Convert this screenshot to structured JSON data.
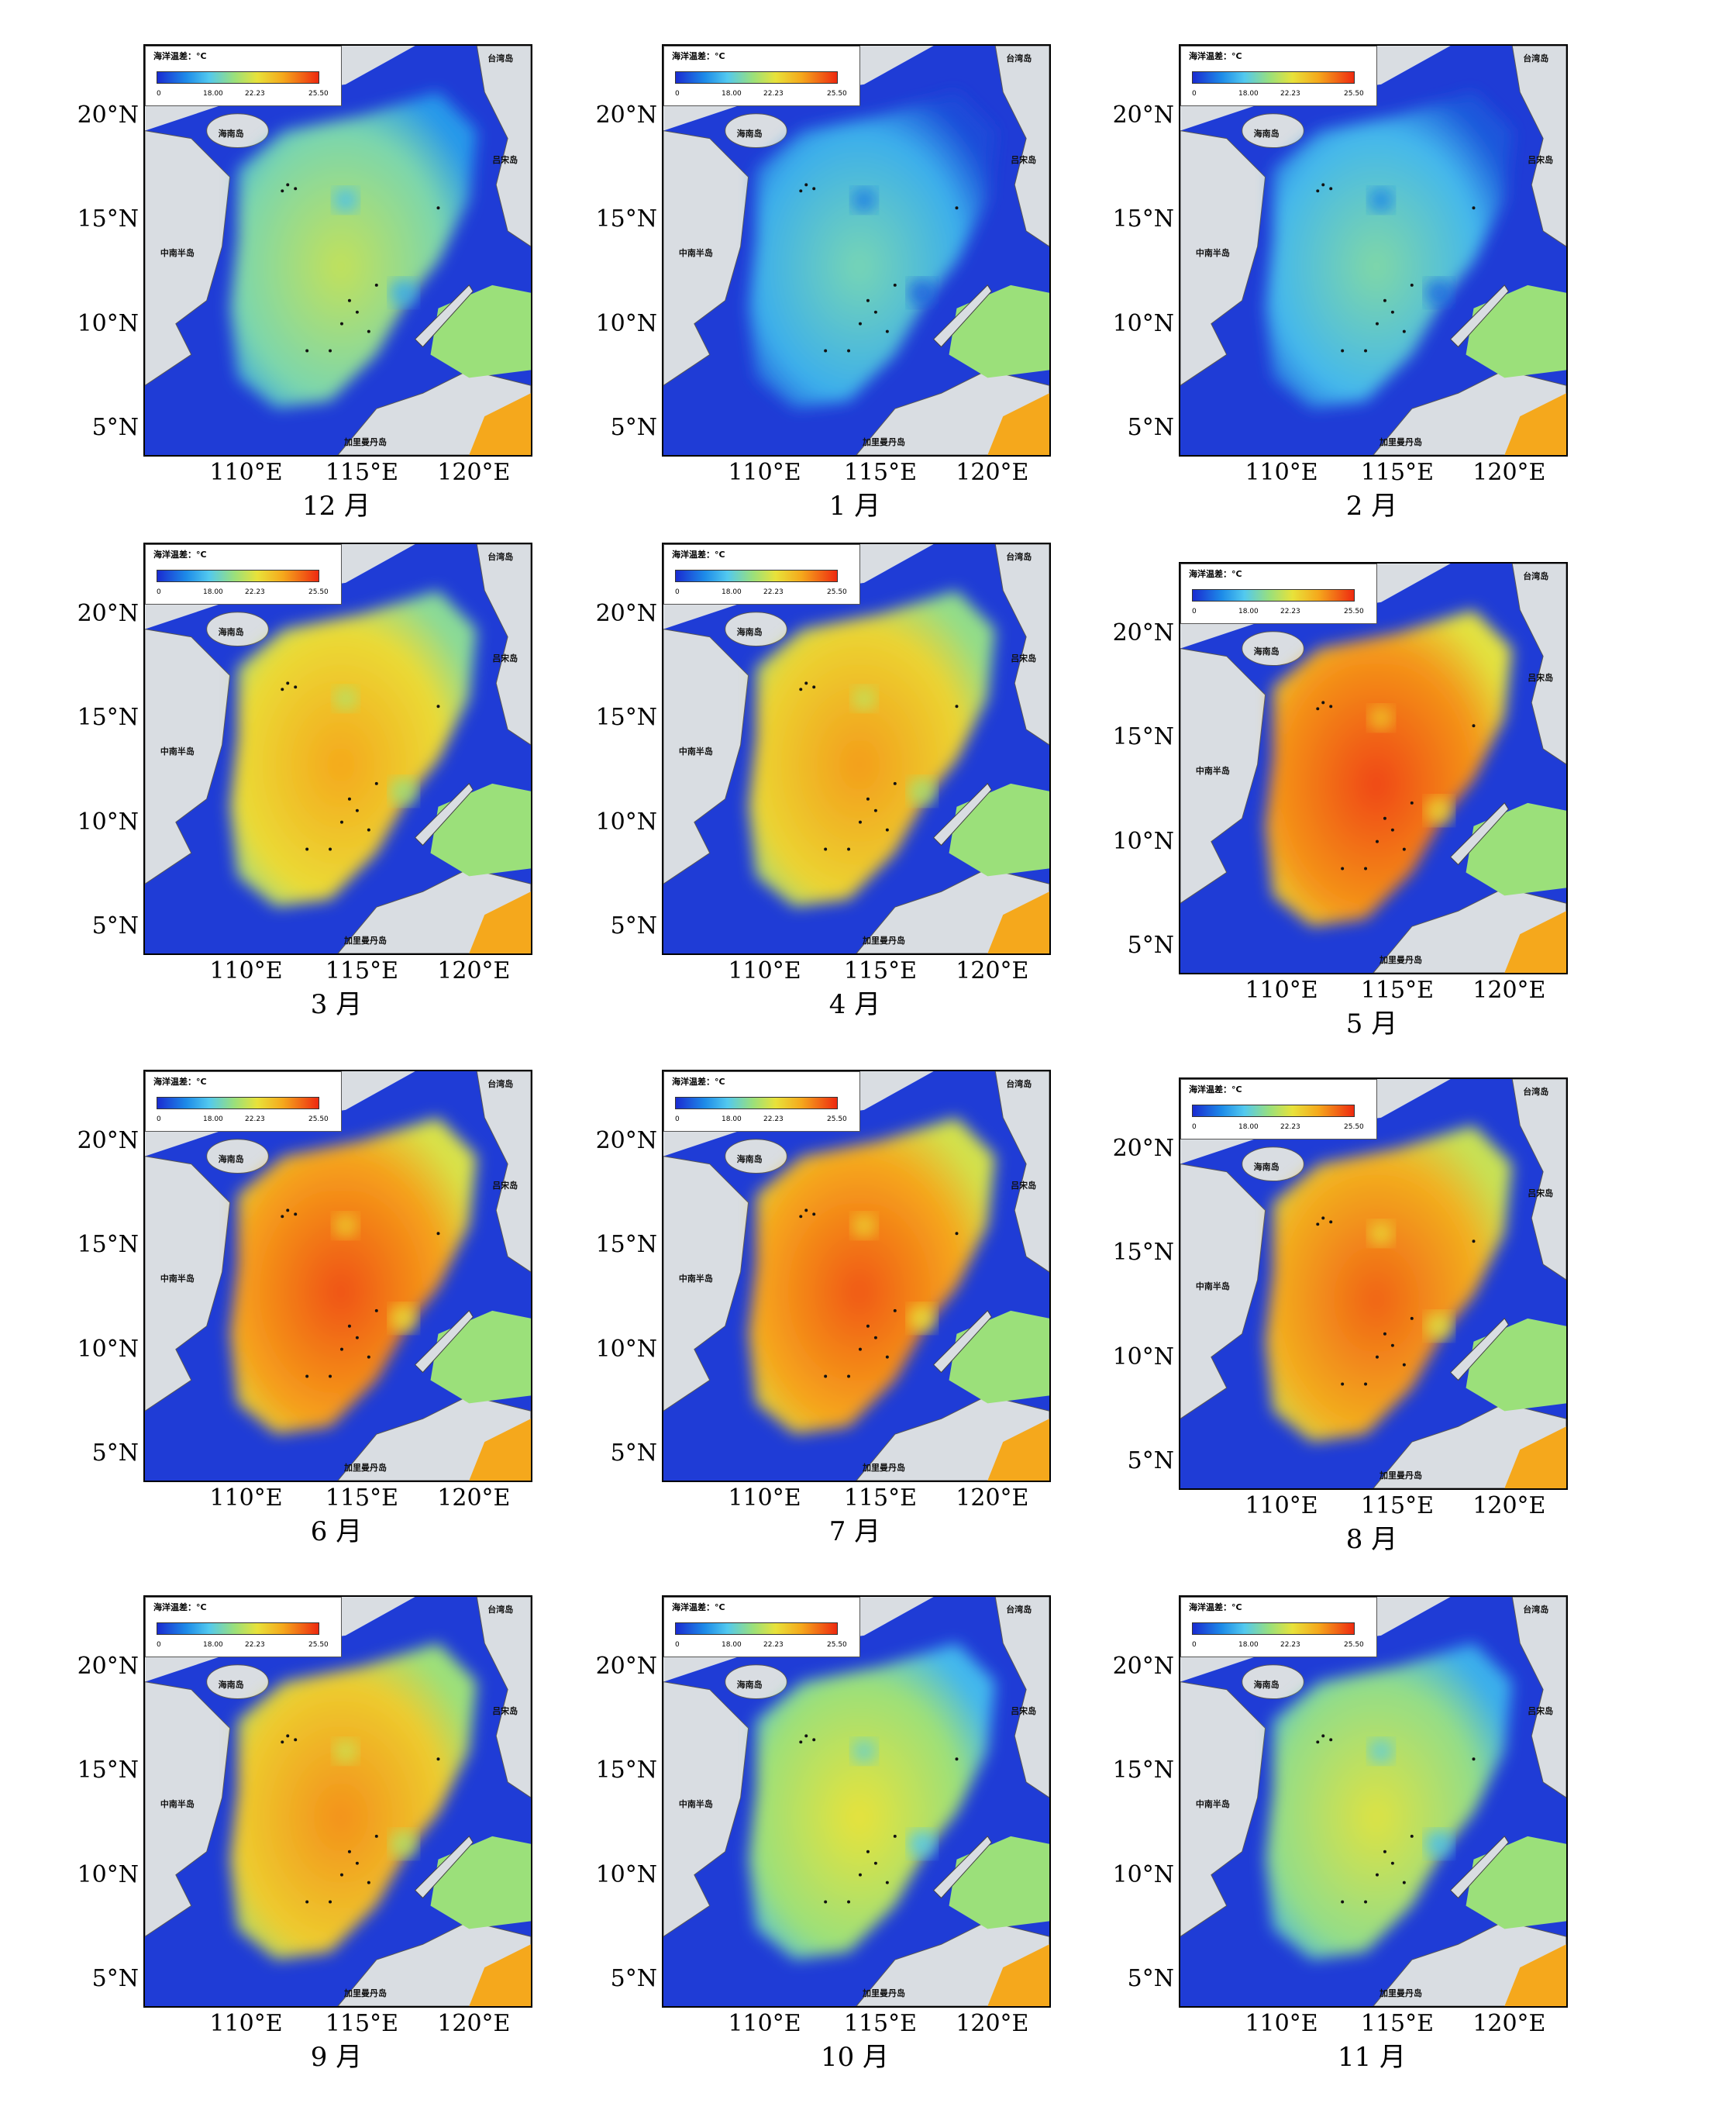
{
  "legend": {
    "title": "海洋温差：°C",
    "ticks": [
      "0",
      "18.00",
      "22.23",
      "25.50"
    ]
  },
  "place_names": {
    "hainan": "海南岛",
    "taiwan": "台湾岛",
    "luzon": "吕宋岛",
    "indochina": "中南半岛",
    "kalimantan": "加里曼丹岛"
  },
  "axes": {
    "lat_labels": [
      "20°N",
      "15°N",
      "10°N",
      "5°N"
    ],
    "lon_labels": [
      "110°E",
      "115°E",
      "120°E"
    ]
  },
  "colors": {
    "deep_blue": "#1f3cd6",
    "land": "#d9dde2",
    "cold_end": "#1a2bd1",
    "warm_end": "#ee2a10"
  },
  "panels": [
    {
      "caption": "12 月",
      "level": 0.55
    },
    {
      "caption": "1 月",
      "level": 0.4
    },
    {
      "caption": "2 月",
      "level": 0.42
    },
    {
      "caption": "3 月",
      "level": 0.78
    },
    {
      "caption": "4 月",
      "level": 0.8
    },
    {
      "caption": "5 月",
      "level": 0.95
    },
    {
      "caption": "6 月",
      "level": 0.93
    },
    {
      "caption": "7 月",
      "level": 0.92
    },
    {
      "caption": "8 月",
      "level": 0.9
    },
    {
      "caption": "9 月",
      "level": 0.82
    },
    {
      "caption": "10 月",
      "level": 0.62
    },
    {
      "caption": "11 月",
      "level": 0.6
    }
  ]
}
